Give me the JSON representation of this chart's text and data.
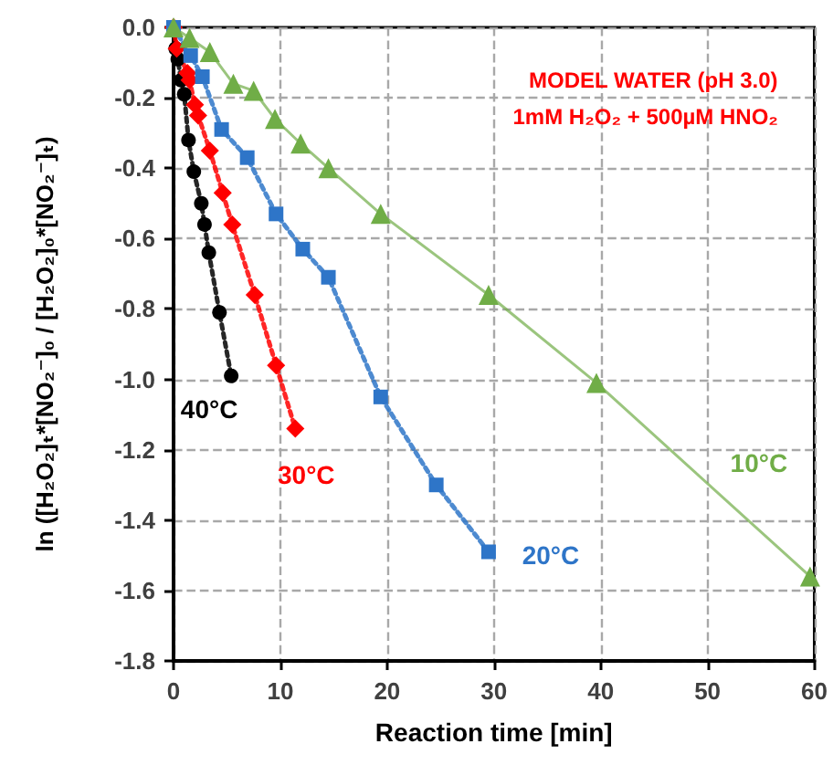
{
  "chart_data": {
    "type": "line",
    "xlabel": "Reaction time [min]",
    "ylabel": "ln ([H₂O₂]ₜ*[NO₂⁻]₀ / [H₂O₂]₀*[NO₂⁻]ₜ)",
    "xlim": [
      0,
      60
    ],
    "xticks": [
      0,
      10,
      20,
      30,
      40,
      50,
      60
    ],
    "ylim": [
      -1.8,
      0
    ],
    "yticks": [
      -1.8,
      -1.6,
      -1.4,
      -1.2,
      {
        "value": -1,
        "label": "-1.0"
      },
      -0.8,
      -0.6,
      -0.4,
      -0.2,
      {
        "value": 0,
        "label": "0.0"
      }
    ],
    "grid": true,
    "annotations": [
      "MODEL WATER (pH 3.0)",
      "1mM H₂O₂ + 500µM HNO₂"
    ],
    "series": [
      {
        "name": "40°C",
        "color": "#000000",
        "marker": "circle",
        "line_style": "dotted",
        "x": [
          0,
          0.2,
          0.4,
          0.7,
          1.0,
          1.4,
          1.9,
          2.6,
          2.9,
          3.3,
          4.3,
          5.4
        ],
        "values": [
          0,
          -0.06,
          -0.09,
          -0.15,
          -0.19,
          -0.32,
          -0.41,
          -0.5,
          -0.56,
          -0.64,
          -0.81,
          -0.99
        ]
      },
      {
        "name": "30°C",
        "color": "#ff0000",
        "marker": "diamond",
        "line_style": "dotted",
        "x": [
          0,
          0.3,
          1.3,
          1.5,
          2.0,
          2.3,
          3.4,
          4.6,
          5.5,
          7.6,
          9.6,
          11.4
        ],
        "values": [
          0,
          -0.06,
          -0.13,
          -0.15,
          -0.22,
          -0.25,
          -0.35,
          -0.47,
          -0.56,
          -0.76,
          -0.96,
          -1.14
        ]
      },
      {
        "name": "20°C",
        "color": "#2e75c8",
        "marker": "square",
        "line_style": "dotted",
        "x": [
          0,
          1.6,
          2.7,
          4.5,
          6.9,
          9.6,
          12.1,
          14.5,
          19.4,
          24.6,
          29.5
        ],
        "values": [
          0,
          -0.08,
          -0.14,
          -0.29,
          -0.37,
          -0.53,
          -0.63,
          -0.71,
          -1.05,
          -1.3,
          -1.49
        ]
      },
      {
        "name": "10°C",
        "color": "#70ad47",
        "marker": "triangle",
        "line_style": "solid",
        "x": [
          0,
          1.5,
          3.4,
          5.6,
          7.5,
          9.5,
          11.9,
          14.5,
          19.4,
          29.5,
          39.6,
          59.6
        ],
        "values": [
          0,
          -0.03,
          -0.07,
          -0.16,
          -0.18,
          -0.26,
          -0.33,
          -0.4,
          -0.53,
          -0.76,
          -1.01,
          -1.56
        ]
      }
    ]
  }
}
